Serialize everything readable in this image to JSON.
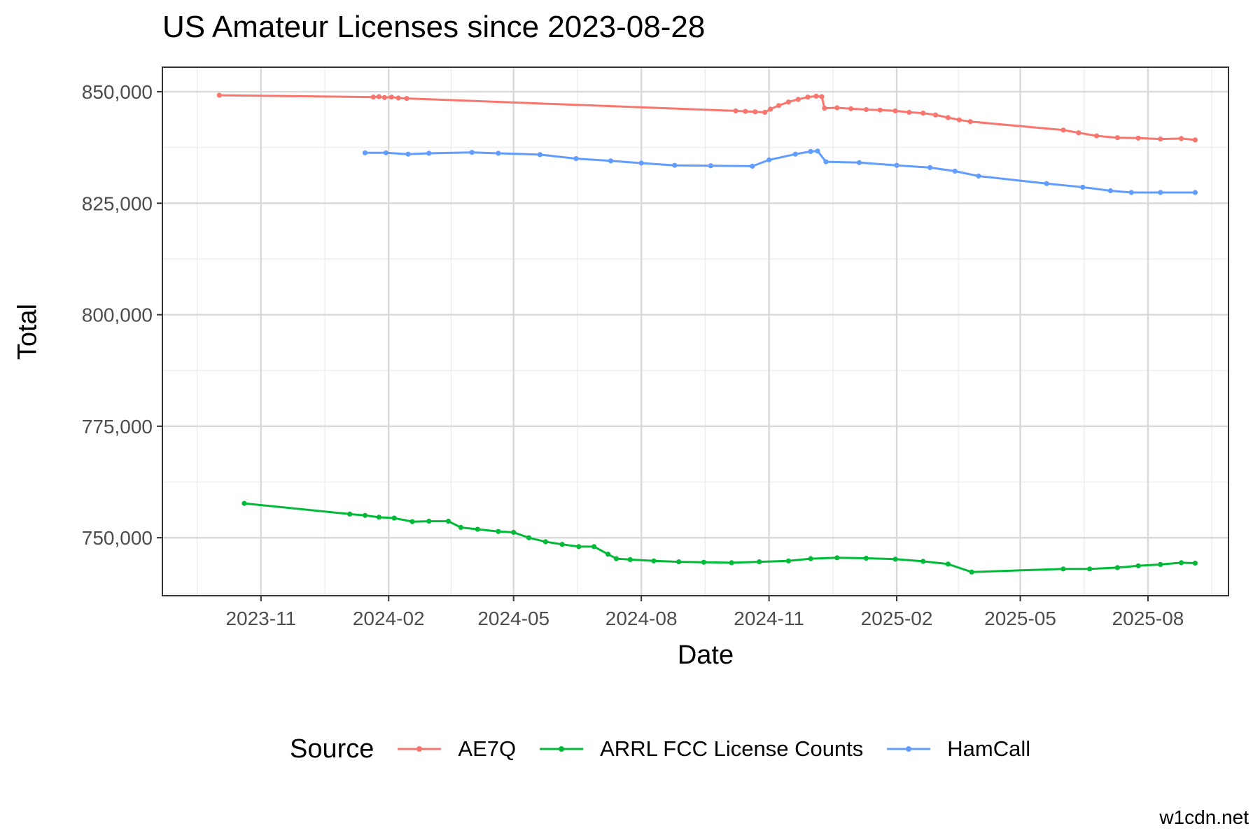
{
  "chart_data": {
    "type": "line",
    "title": "US Amateur Licenses since 2023-08-28",
    "xlabel": "Date",
    "ylabel": "Total",
    "xlim": [
      "2023-08-22",
      "2025-09-28"
    ],
    "ylim": [
      737000,
      855500
    ],
    "x_ticks": [
      "2023-11-01",
      "2024-02-01",
      "2024-05-01",
      "2024-08-01",
      "2024-11-01",
      "2025-02-01",
      "2025-05-01",
      "2025-08-01"
    ],
    "x_tick_labels": [
      "2023-11",
      "2024-02",
      "2024-05",
      "2024-08",
      "2024-11",
      "2025-02",
      "2025-05",
      "2025-08"
    ],
    "y_ticks": [
      750000,
      775000,
      800000,
      825000,
      850000
    ],
    "y_tick_labels": [
      "750,000",
      "775,000",
      "800,000",
      "825,000",
      "850,000"
    ],
    "grid": true,
    "legend": {
      "title": "Source",
      "position": "bottom"
    },
    "series": [
      {
        "name": "AE7Q",
        "color": "#F8766D",
        "points": [
          [
            "2023-10-02",
            849200
          ],
          [
            "2024-01-21",
            848800
          ],
          [
            "2024-01-25",
            848900
          ],
          [
            "2024-01-29",
            848700
          ],
          [
            "2024-02-03",
            848800
          ],
          [
            "2024-02-08",
            848600
          ],
          [
            "2024-02-14",
            848500
          ],
          [
            "2024-10-08",
            845700
          ],
          [
            "2024-10-15",
            845600
          ],
          [
            "2024-10-22",
            845500
          ],
          [
            "2024-10-29",
            845400
          ],
          [
            "2024-11-02",
            846100
          ],
          [
            "2024-11-08",
            846900
          ],
          [
            "2024-11-15",
            847700
          ],
          [
            "2024-11-22",
            848300
          ],
          [
            "2024-11-29",
            848800
          ],
          [
            "2024-12-05",
            849000
          ],
          [
            "2024-12-09",
            848900
          ],
          [
            "2024-12-11",
            846300
          ],
          [
            "2024-12-20",
            846400
          ],
          [
            "2024-12-30",
            846200
          ],
          [
            "2025-01-10",
            846000
          ],
          [
            "2025-01-20",
            845900
          ],
          [
            "2025-01-31",
            845700
          ],
          [
            "2025-02-10",
            845400
          ],
          [
            "2025-02-20",
            845200
          ],
          [
            "2025-03-01",
            844800
          ],
          [
            "2025-03-10",
            844200
          ],
          [
            "2025-03-18",
            843700
          ],
          [
            "2025-03-26",
            843300
          ],
          [
            "2025-06-01",
            841400
          ],
          [
            "2025-06-12",
            840800
          ],
          [
            "2025-06-25",
            840100
          ],
          [
            "2025-07-10",
            839700
          ],
          [
            "2025-07-25",
            839600
          ],
          [
            "2025-08-10",
            839400
          ],
          [
            "2025-08-25",
            839500
          ],
          [
            "2025-09-04",
            839200
          ]
        ]
      },
      {
        "name": "ARRL FCC License Counts",
        "color": "#00BA38",
        "points": [
          [
            "2023-10-20",
            757700
          ],
          [
            "2024-01-04",
            755300
          ],
          [
            "2024-01-15",
            755000
          ],
          [
            "2024-01-25",
            754600
          ],
          [
            "2024-02-05",
            754400
          ],
          [
            "2024-02-18",
            753600
          ],
          [
            "2024-03-01",
            753700
          ],
          [
            "2024-03-15",
            753700
          ],
          [
            "2024-03-24",
            752300
          ],
          [
            "2024-04-05",
            751900
          ],
          [
            "2024-04-20",
            751400
          ],
          [
            "2024-05-01",
            751200
          ],
          [
            "2024-05-12",
            750000
          ],
          [
            "2024-05-24",
            749100
          ],
          [
            "2024-06-05",
            748500
          ],
          [
            "2024-06-17",
            748000
          ],
          [
            "2024-06-28",
            748000
          ],
          [
            "2024-07-08",
            746300
          ],
          [
            "2024-07-14",
            745300
          ],
          [
            "2024-07-24",
            745100
          ],
          [
            "2024-08-10",
            744800
          ],
          [
            "2024-08-28",
            744600
          ],
          [
            "2024-09-15",
            744500
          ],
          [
            "2024-10-05",
            744400
          ],
          [
            "2024-10-25",
            744600
          ],
          [
            "2024-11-15",
            744800
          ],
          [
            "2024-12-01",
            745300
          ],
          [
            "2024-12-20",
            745500
          ],
          [
            "2025-01-10",
            745400
          ],
          [
            "2025-01-31",
            745200
          ],
          [
            "2025-02-20",
            744700
          ],
          [
            "2025-03-10",
            744100
          ],
          [
            "2025-03-27",
            742300
          ],
          [
            "2025-06-01",
            743000
          ],
          [
            "2025-06-20",
            743000
          ],
          [
            "2025-07-10",
            743300
          ],
          [
            "2025-07-25",
            743700
          ],
          [
            "2025-08-10",
            744000
          ],
          [
            "2025-08-25",
            744400
          ],
          [
            "2025-09-04",
            744300
          ]
        ]
      },
      {
        "name": "HamCall",
        "color": "#619CFF",
        "points": [
          [
            "2024-01-15",
            836300
          ],
          [
            "2024-01-30",
            836300
          ],
          [
            "2024-02-15",
            836000
          ],
          [
            "2024-03-01",
            836200
          ],
          [
            "2024-04-01",
            836400
          ],
          [
            "2024-04-20",
            836200
          ],
          [
            "2024-05-20",
            835900
          ],
          [
            "2024-06-15",
            835000
          ],
          [
            "2024-07-10",
            834500
          ],
          [
            "2024-08-01",
            834000
          ],
          [
            "2024-08-25",
            833500
          ],
          [
            "2024-09-20",
            833400
          ],
          [
            "2024-10-20",
            833300
          ],
          [
            "2024-11-01",
            834700
          ],
          [
            "2024-11-20",
            836000
          ],
          [
            "2024-12-01",
            836600
          ],
          [
            "2024-12-06",
            836700
          ],
          [
            "2024-12-12",
            834300
          ],
          [
            "2025-01-05",
            834100
          ],
          [
            "2025-02-01",
            833500
          ],
          [
            "2025-02-25",
            833000
          ],
          [
            "2025-03-15",
            832200
          ],
          [
            "2025-04-01",
            831100
          ],
          [
            "2025-05-20",
            829400
          ],
          [
            "2025-06-15",
            828600
          ],
          [
            "2025-07-05",
            827800
          ],
          [
            "2025-07-20",
            827400
          ],
          [
            "2025-08-10",
            827400
          ],
          [
            "2025-09-04",
            827400
          ]
        ]
      }
    ]
  },
  "credit": "w1cdn.net"
}
